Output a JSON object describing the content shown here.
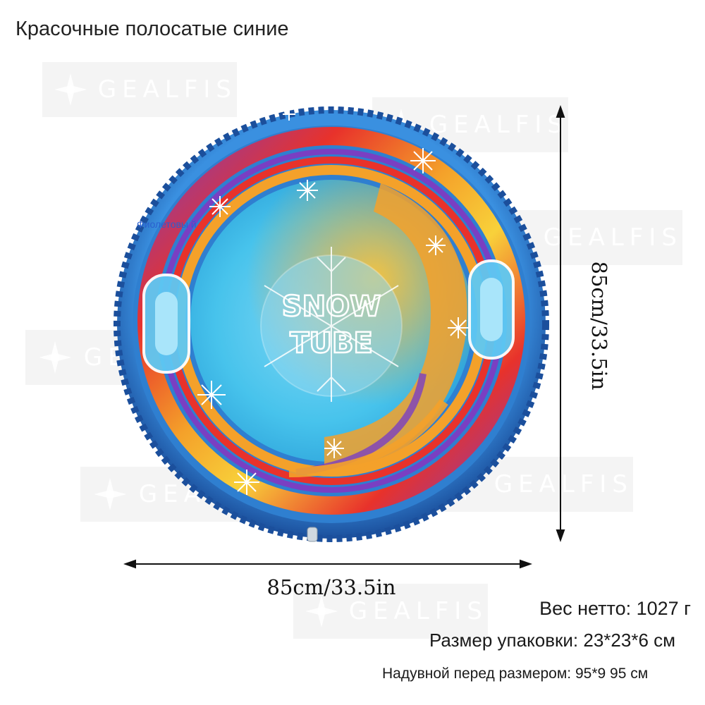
{
  "title": "Красочные полосатые синие",
  "watermark_text": "GEALFIS",
  "product_logo": {
    "line1": "SNOW",
    "line2": "TUBE"
  },
  "variant_tag": "Фиолетовы й",
  "dimensions": {
    "width": "85cm/33.5in",
    "height": "85cm/33.5in"
  },
  "specs": {
    "net_weight": "Вес нетто: 1027 г",
    "package_size": "Размер упаковки: 23*23*6 см",
    "inflated_size": "Надувной перед размером: 95*9 95 см"
  },
  "colors": {
    "background": "#ffffff",
    "arrow": "#111111",
    "tube_blue": "#2f7fd0",
    "center_cyan": "#47c3ec",
    "accent_orange": "#f4a12a",
    "accent_red": "#e8322b",
    "accent_purple": "#7a3fc2"
  }
}
